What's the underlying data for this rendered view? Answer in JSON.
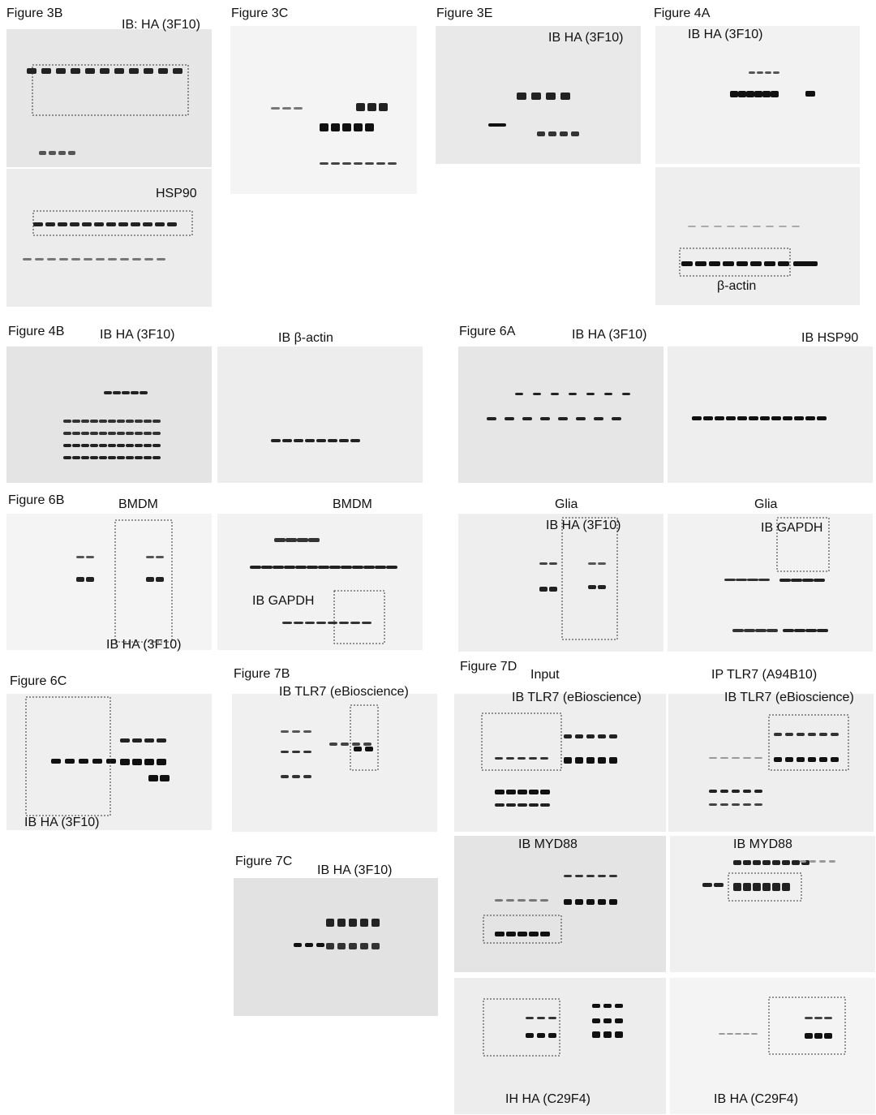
{
  "figures": [
    {
      "title": "Figure 3B",
      "labels": [
        "IB: HA (3F10)",
        "HSP90"
      ]
    },
    {
      "title": "Figure 3C",
      "labels": []
    },
    {
      "title": "Figure 3E",
      "labels": [
        "IB HA (3F10)"
      ]
    },
    {
      "title": "Figure 4A",
      "labels": [
        "IB HA (3F10)",
        "β-actin"
      ]
    },
    {
      "title": "Figure 4B",
      "labels": [
        "IB HA (3F10)",
        "IB β-actin"
      ]
    },
    {
      "title": "Figure 6A",
      "labels": [
        "IB HA (3F10)",
        "IB HSP90"
      ]
    },
    {
      "title": "Figure 6B",
      "labels": [
        "BMDM",
        "BMDM",
        "IB GAPDH",
        "IB HA (3F10)",
        "Glia",
        "Glia",
        "IB HA (3F10)",
        "IB GAPDH"
      ]
    },
    {
      "title": "Figure 6C",
      "labels": [
        "IB HA (3F10)"
      ]
    },
    {
      "title": "Figure 7B",
      "labels": [
        "IB TLR7 (eBioscience)"
      ]
    },
    {
      "title": "Figure 7C",
      "labels": [
        "IB HA (3F10)"
      ]
    },
    {
      "title": "Figure 7D",
      "labels": [
        "Input",
        "IP TLR7 (A94B10)",
        "IB TLR7 (eBioscience)",
        "IB TLR7 (eBioscience)",
        "IB MYD88",
        "IB MYD88",
        "IH HA (C29F4)",
        "IB HA (C29F4)"
      ]
    }
  ]
}
